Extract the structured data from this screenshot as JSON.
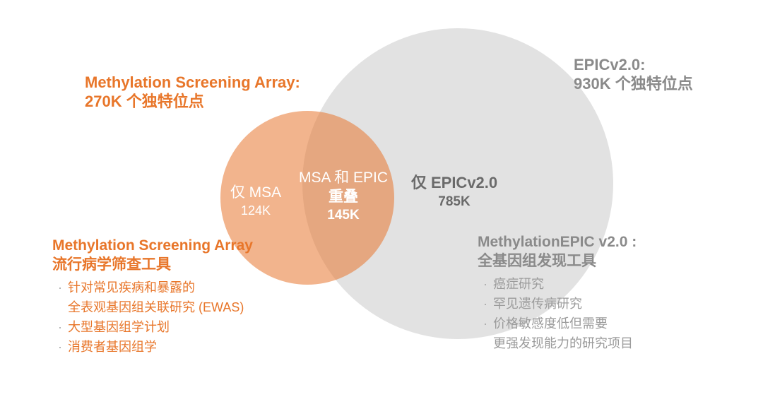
{
  "colors": {
    "orange_text": "#E8762A",
    "gray_heading": "#8A8A8A",
    "gray_body": "#9B9B9B",
    "dark_gray_label": "#6A6A6A",
    "gray_circle": "#E2E2E2",
    "orange_circle_fill": "rgba(232,118,47,0.55)",
    "white_label": "#FFFFFF",
    "bullet_dot": "#A9A9A9",
    "background": "#FFFFFF"
  },
  "glyphs": {
    "bullet": "·"
  },
  "msa_heading": {
    "line1": "Methylation Screening Array:",
    "line2": "270K 个独特位点"
  },
  "epic_heading": {
    "line1": "EPICv2.0:",
    "line2": "930K 个独特位点"
  },
  "venn": {
    "msa_only": {
      "label": "仅 MSA",
      "value": "124K"
    },
    "overlap": {
      "line1": "MSA 和 EPIC",
      "line2": "重叠",
      "value": "145K"
    },
    "epic_only": {
      "label": "仅 EPICv2.0",
      "value": "785K"
    }
  },
  "msa_info": {
    "title_line1": "Methylation Screening Array",
    "title_line2": "流行病学筛查工具",
    "bullets": [
      {
        "line1": "针对常见疾病和暴露的",
        "line2": "全表观基因组关联研究 (EWAS)"
      },
      {
        "line1": "大型基因组学计划"
      },
      {
        "line1": "消费者基因组学"
      }
    ]
  },
  "epic_info": {
    "title_line1": "MethylationEPIC v2.0 :",
    "title_line2": "全基因组发现工具",
    "bullets": [
      {
        "line1": "癌症研究"
      },
      {
        "line1": "罕见遗传病研究"
      },
      {
        "line1": "价格敏感度低但需要",
        "line2": "更强发现能力的研究项目"
      }
    ]
  }
}
